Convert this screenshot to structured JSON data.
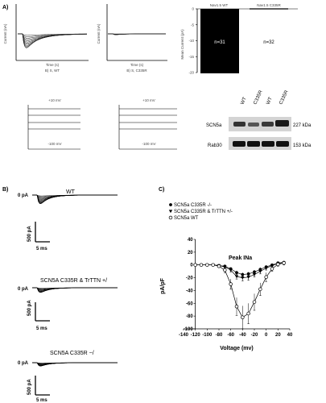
{
  "panels": {
    "a": {
      "label": "A)"
    },
    "b": {
      "label": "B)"
    },
    "c": {
      "label": "C)"
    }
  },
  "panel_a": {
    "trace_left": {
      "ylabel": "Current (nA)",
      "xlabel": "Time (s)",
      "caption": "B) S, WT"
    },
    "trace_right": {
      "ylabel": "Current (nA)",
      "xlabel": "Time (s)",
      "caption": "B) S, C335R"
    },
    "bar_headers": [
      "Nav1.5 WT",
      "Nav1.5 C335R"
    ],
    "bar_ylabel": "Mean Current (pA)",
    "bar_yticks": [
      "0",
      "-5",
      "-10",
      "-15",
      "-20"
    ],
    "bar_labels": [
      "n=31",
      "n=32"
    ],
    "step_left": {
      "title": "+10 mV",
      "bottom": "-100 mV"
    },
    "step_right": {
      "title": "+10 mV",
      "bottom": "-100 mV"
    },
    "blot": {
      "lane_labels": [
        "WT",
        "C335R",
        "WT",
        "C335R"
      ],
      "row_labels": [
        "SCN5a",
        "Rab30"
      ],
      "kda_labels": [
        "227 kDa",
        "153 kDa"
      ]
    }
  },
  "panel_b": {
    "groups": [
      {
        "title": "WT",
        "zero": "0 pA",
        "scale_y": "500 pA",
        "scale_x": "5 ms"
      },
      {
        "title": "SCN5A C335R & TrTTN +/",
        "zero": "0 pA",
        "scale_y": "500 pA",
        "scale_x": "5 ms"
      },
      {
        "title": "SCN5A C335R −/",
        "zero": "0 pA",
        "scale_y": "500 pA",
        "scale_x": "5 ms"
      }
    ]
  },
  "chart_data": {
    "type": "line",
    "title": "Peak INa",
    "xlabel": "Voltage (mv)",
    "ylabel": "pA/pF",
    "xlim": [
      -140,
      40
    ],
    "ylim": [
      -100,
      40
    ],
    "xticks": [
      -140,
      -120,
      -100,
      -80,
      -60,
      -40,
      -20,
      0,
      20,
      40
    ],
    "yticks": [
      40,
      20,
      0,
      -20,
      -40,
      -60,
      -80,
      -100
    ],
    "legend_position": "top-left",
    "x": [
      -120,
      -110,
      -100,
      -90,
      -80,
      -70,
      -60,
      -50,
      -40,
      -30,
      -20,
      -10,
      0,
      10,
      20,
      30
    ],
    "series": [
      {
        "name": "SCN5a C335R -/-",
        "marker": "circle-filled",
        "values": [
          0,
          0,
          0,
          0,
          -1,
          -2,
          -6,
          -12,
          -15,
          -14,
          -11,
          -7,
          -3,
          0,
          3,
          4
        ],
        "err": [
          1,
          1,
          1,
          1,
          1,
          1,
          2,
          3,
          3,
          3,
          3,
          3,
          2,
          2,
          2,
          2
        ]
      },
      {
        "name": "SCN5a C335R & TrTTN +/-",
        "marker": "triangle-filled",
        "values": [
          0,
          0,
          0,
          0,
          -1,
          -3,
          -8,
          -18,
          -20,
          -19,
          -15,
          -10,
          -5,
          -1,
          2,
          3
        ],
        "err": [
          1,
          1,
          1,
          1,
          1,
          2,
          3,
          4,
          5,
          5,
          4,
          4,
          3,
          2,
          2,
          2
        ]
      },
      {
        "name": "SCN5a WT",
        "marker": "circle-open",
        "values": [
          0,
          0,
          0,
          0,
          -2,
          -8,
          -30,
          -65,
          -82,
          -76,
          -58,
          -38,
          -19,
          -6,
          1,
          3
        ],
        "err": [
          1,
          1,
          1,
          1,
          2,
          4,
          8,
          14,
          18,
          16,
          13,
          10,
          7,
          4,
          3,
          3
        ]
      }
    ]
  }
}
